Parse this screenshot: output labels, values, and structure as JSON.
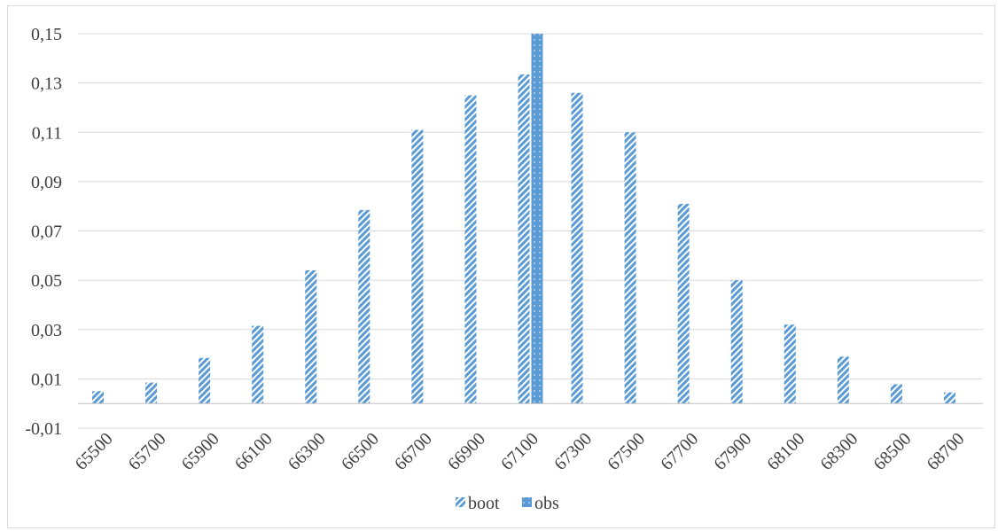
{
  "chart_data": {
    "type": "bar",
    "categories": [
      "65500",
      "65700",
      "65900",
      "66100",
      "66300",
      "66500",
      "66700",
      "66900",
      "67100",
      "67300",
      "67500",
      "67700",
      "67900",
      "68100",
      "68300",
      "68500",
      "68700"
    ],
    "series": [
      {
        "name": "boot",
        "color": "#5b9bd5",
        "pattern": "diagonal-stripes",
        "values": [
          0.005,
          0.0085,
          0.0185,
          0.0315,
          0.054,
          0.0785,
          0.111,
          0.125,
          0.1335,
          0.126,
          0.11,
          0.081,
          0.05,
          0.032,
          0.019,
          0.0078,
          0.0045
        ]
      },
      {
        "name": "obs",
        "color": "#5b9bd5",
        "pattern": "dotted",
        "values": [
          null,
          null,
          null,
          null,
          null,
          null,
          null,
          null,
          0.15,
          null,
          null,
          null,
          null,
          null,
          null,
          null,
          null
        ]
      }
    ],
    "y_ticks": [
      "-0,01",
      "0,01",
      "0,03",
      "0,05",
      "0,07",
      "0,09",
      "0,11",
      "0,13",
      "0,15"
    ],
    "ylim": [
      -0.01,
      0.15
    ],
    "title": "",
    "xlabel": "",
    "ylabel": "",
    "grid": true,
    "legend_position": "bottom"
  }
}
